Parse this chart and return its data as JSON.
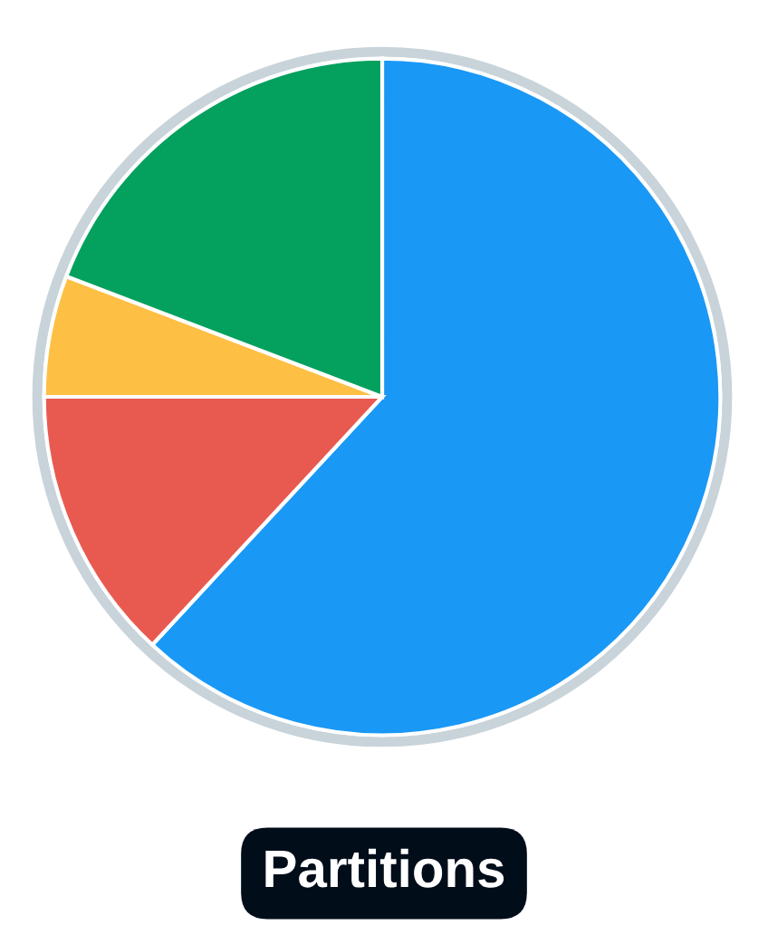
{
  "chart_data": {
    "type": "pie",
    "title": "Partitions",
    "categories": [
      null,
      null,
      null,
      null
    ],
    "values": [
      61.9,
      13.1,
      5.8,
      19.2
    ],
    "colors": [
      "#1a98f6",
      "#e85a50",
      "#fdc044",
      "#03a05e"
    ]
  }
}
